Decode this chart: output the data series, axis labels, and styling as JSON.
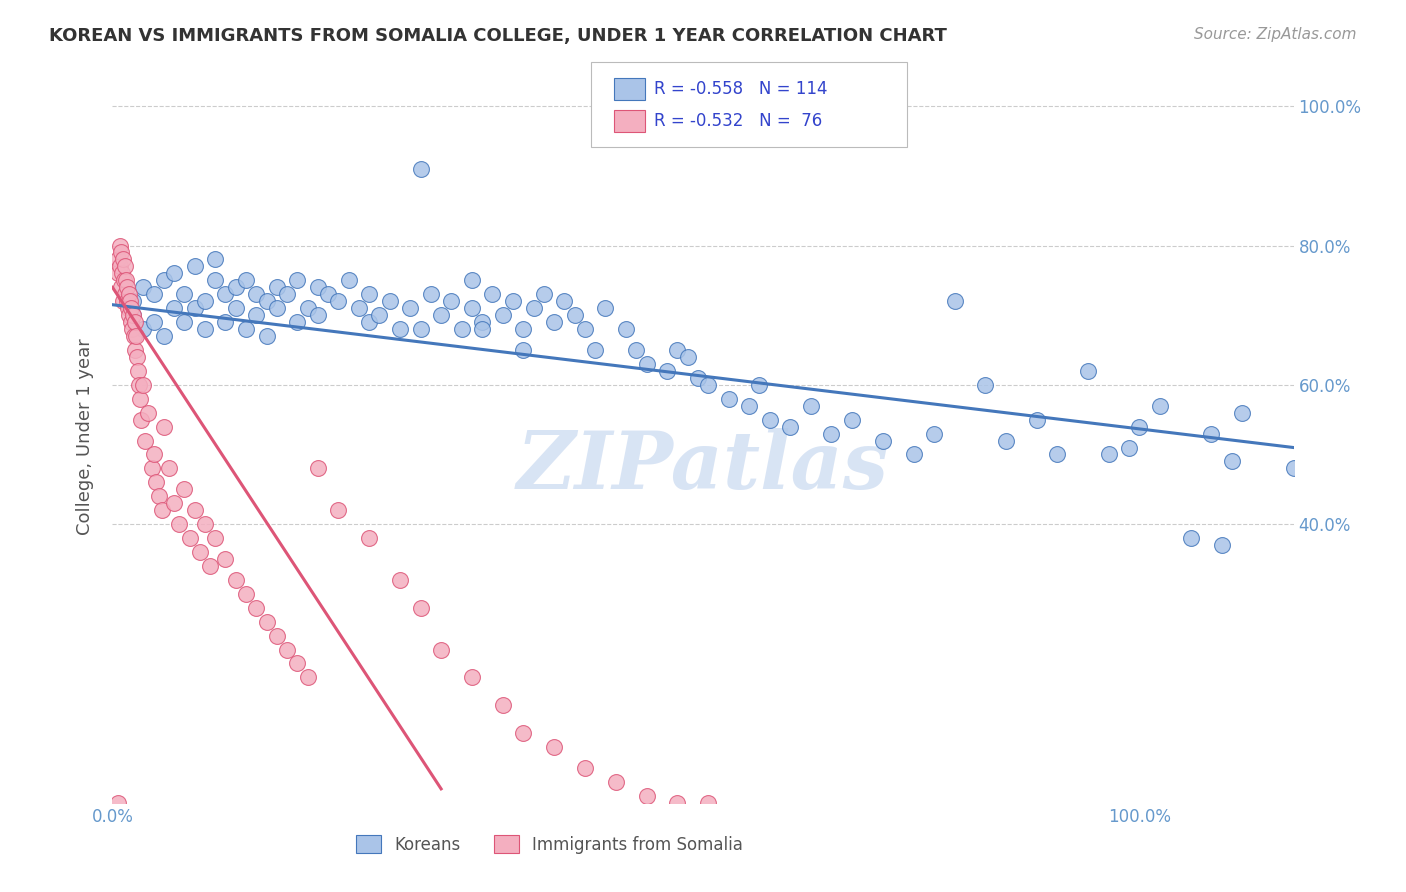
{
  "title": "KOREAN VS IMMIGRANTS FROM SOMALIA COLLEGE, UNDER 1 YEAR CORRELATION CHART",
  "source": "Source: ZipAtlas.com",
  "ylabel": "College, Under 1 year",
  "blue_scatter_x": [
    0.02,
    0.02,
    0.03,
    0.03,
    0.04,
    0.04,
    0.05,
    0.05,
    0.06,
    0.06,
    0.07,
    0.07,
    0.08,
    0.08,
    0.09,
    0.09,
    0.1,
    0.1,
    0.11,
    0.11,
    0.12,
    0.12,
    0.13,
    0.13,
    0.14,
    0.14,
    0.15,
    0.15,
    0.16,
    0.16,
    0.17,
    0.18,
    0.18,
    0.19,
    0.2,
    0.2,
    0.21,
    0.22,
    0.23,
    0.24,
    0.25,
    0.25,
    0.26,
    0.27,
    0.28,
    0.29,
    0.3,
    0.31,
    0.32,
    0.33,
    0.34,
    0.35,
    0.36,
    0.37,
    0.38,
    0.39,
    0.4,
    0.41,
    0.42,
    0.43,
    0.44,
    0.45,
    0.46,
    0.47,
    0.48,
    0.5,
    0.51,
    0.52,
    0.54,
    0.55,
    0.56,
    0.57,
    0.58,
    0.6,
    0.62,
    0.63,
    0.64,
    0.66,
    0.68,
    0.7,
    0.72,
    0.75,
    0.78,
    0.8,
    0.82,
    0.85,
    0.87,
    0.9,
    0.92,
    0.95,
    0.97,
    0.99,
    1.0,
    1.02,
    1.05,
    1.07,
    1.08,
    1.09,
    1.1,
    1.15,
    0.35,
    0.36,
    0.3,
    0.4
  ],
  "blue_scatter_y": [
    0.72,
    0.7,
    0.74,
    0.68,
    0.73,
    0.69,
    0.75,
    0.67,
    0.76,
    0.71,
    0.73,
    0.69,
    0.77,
    0.71,
    0.72,
    0.68,
    0.78,
    0.75,
    0.73,
    0.69,
    0.74,
    0.71,
    0.75,
    0.68,
    0.73,
    0.7,
    0.72,
    0.67,
    0.74,
    0.71,
    0.73,
    0.75,
    0.69,
    0.71,
    0.74,
    0.7,
    0.73,
    0.72,
    0.75,
    0.71,
    0.69,
    0.73,
    0.7,
    0.72,
    0.68,
    0.71,
    0.91,
    0.73,
    0.7,
    0.72,
    0.68,
    0.75,
    0.69,
    0.73,
    0.7,
    0.72,
    0.65,
    0.71,
    0.73,
    0.69,
    0.72,
    0.7,
    0.68,
    0.65,
    0.71,
    0.68,
    0.65,
    0.63,
    0.62,
    0.65,
    0.64,
    0.61,
    0.6,
    0.58,
    0.57,
    0.6,
    0.55,
    0.54,
    0.57,
    0.53,
    0.55,
    0.52,
    0.5,
    0.53,
    0.72,
    0.6,
    0.52,
    0.55,
    0.5,
    0.62,
    0.5,
    0.51,
    0.54,
    0.57,
    0.38,
    0.53,
    0.37,
    0.49,
    0.56,
    0.48,
    0.71,
    0.68,
    0.68,
    0.68
  ],
  "pink_scatter_x": [
    0.005,
    0.005,
    0.007,
    0.007,
    0.008,
    0.008,
    0.009,
    0.01,
    0.01,
    0.011,
    0.012,
    0.012,
    0.013,
    0.014,
    0.014,
    0.015,
    0.016,
    0.016,
    0.017,
    0.018,
    0.018,
    0.019,
    0.02,
    0.021,
    0.022,
    0.022,
    0.023,
    0.024,
    0.025,
    0.026,
    0.027,
    0.028,
    0.03,
    0.032,
    0.035,
    0.038,
    0.04,
    0.042,
    0.045,
    0.048,
    0.05,
    0.055,
    0.06,
    0.065,
    0.07,
    0.075,
    0.08,
    0.085,
    0.09,
    0.095,
    0.1,
    0.11,
    0.12,
    0.13,
    0.14,
    0.15,
    0.16,
    0.17,
    0.18,
    0.19,
    0.2,
    0.22,
    0.25,
    0.28,
    0.3,
    0.32,
    0.35,
    0.38,
    0.4,
    0.43,
    0.46,
    0.49,
    0.52,
    0.55,
    0.58,
    0.005
  ],
  "pink_scatter_y": [
    0.78,
    0.76,
    0.8,
    0.77,
    0.79,
    0.74,
    0.76,
    0.78,
    0.72,
    0.75,
    0.73,
    0.77,
    0.75,
    0.72,
    0.74,
    0.71,
    0.73,
    0.7,
    0.72,
    0.69,
    0.71,
    0.68,
    0.7,
    0.67,
    0.69,
    0.65,
    0.67,
    0.64,
    0.62,
    0.6,
    0.58,
    0.55,
    0.6,
    0.52,
    0.56,
    0.48,
    0.5,
    0.46,
    0.44,
    0.42,
    0.54,
    0.48,
    0.43,
    0.4,
    0.45,
    0.38,
    0.42,
    0.36,
    0.4,
    0.34,
    0.38,
    0.35,
    0.32,
    0.3,
    0.28,
    0.26,
    0.24,
    0.22,
    0.2,
    0.18,
    0.48,
    0.42,
    0.38,
    0.32,
    0.28,
    0.22,
    0.18,
    0.14,
    0.1,
    0.08,
    0.05,
    0.03,
    0.01,
    0.0,
    0.0,
    0.0
  ],
  "blue_line_x": [
    0.0,
    1.15
  ],
  "blue_line_y": [
    0.715,
    0.51
  ],
  "pink_line_x": [
    0.0,
    0.32
  ],
  "pink_line_y": [
    0.74,
    0.02
  ],
  "watermark": "ZIPatlas",
  "blue_color": "#4477bb",
  "blue_fill": "#aac4e8",
  "pink_color": "#dd5577",
  "pink_fill": "#f4afc0",
  "title_color": "#333333",
  "axis_label_color": "#6699cc",
  "right_tick_color": "#6699cc",
  "legend_text_color": "#3344cc",
  "xlim": [
    0.0,
    1.15
  ],
  "ylim": [
    0.0,
    1.05
  ],
  "background_color": "#ffffff",
  "grid_color": "#cccccc"
}
